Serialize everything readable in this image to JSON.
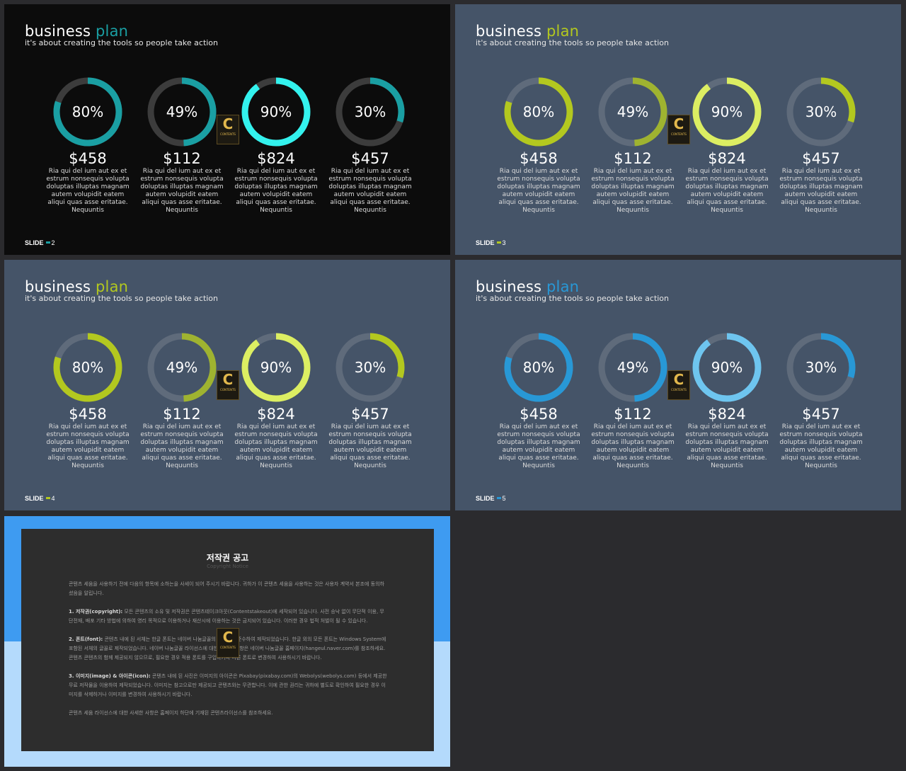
{
  "slides": [
    {
      "title_main": "business",
      "title_accent": "plan",
      "subtitle": "it's about creating the tools so people take action",
      "slide_word": "SLIDE",
      "slide_number": "2",
      "colors": {
        "background": "#0c0c0c",
        "accent": "#1a9fa3",
        "track": "#3c3c3c",
        "highlight": "#33f2ee",
        "bar": "#1a9fa3"
      },
      "items": [
        {
          "percent_label": "80%",
          "percent": 80,
          "amount": "$458",
          "text": "Ria qui del ium aut ex et estrum nonsequis volupta doluptas illuptas magnam autem volupidit eatem aliqui quas asse eritatae. Nequuntis"
        },
        {
          "percent_label": "49%",
          "percent": 49,
          "amount": "$112",
          "text": "Ria qui del ium aut ex et estrum nonsequis volupta doluptas illuptas magnam autem volupidit eatem aliqui quas asse eritatae. Nequuntis"
        },
        {
          "percent_label": "90%",
          "percent": 90,
          "amount": "$824",
          "text": "Ria qui del ium aut ex et estrum nonsequis volupta doluptas illuptas magnam autem volupidit eatem aliqui quas asse eritatae. Nequuntis"
        },
        {
          "percent_label": "30%",
          "percent": 30,
          "amount": "$457",
          "text": "Ria qui del ium aut ex et estrum nonsequis volupta doluptas illuptas magnam autem volupidit eatem aliqui quas asse eritatae. Nequuntis"
        }
      ]
    },
    {
      "title_main": "business",
      "title_accent": "plan",
      "subtitle": "it's about creating the tools so people take action",
      "slide_word": "SLIDE",
      "slide_number": "3",
      "colors": {
        "background": "#455468",
        "accent": "#b3c81f",
        "track": "#5f6b7b",
        "highlight": "#dcee62",
        "bar": "#b3c81f"
      },
      "items": [
        {
          "percent_label": "80%",
          "percent": 80,
          "amount": "$458",
          "text": "Ria qui del ium aut ex et estrum nonsequis volupta doluptas illuptas magnam autem volupidit eatem aliqui quas asse eritatae. Nequuntis"
        },
        {
          "percent_label": "49%",
          "percent": 49,
          "amount": "$112",
          "text": "Ria qui del ium aut ex et estrum nonsequis volupta doluptas illuptas magnam autem volupidit eatem aliqui quas asse eritatae. Nequuntis"
        },
        {
          "percent_label": "90%",
          "percent": 90,
          "amount": "$824",
          "text": "Ria qui del ium aut ex et estrum nonsequis volupta doluptas illuptas magnam autem volupidit eatem aliqui quas asse eritatae. Nequuntis"
        },
        {
          "percent_label": "30%",
          "percent": 30,
          "amount": "$457",
          "text": "Ria qui del ium aut ex et estrum nonsequis volupta doluptas illuptas magnam autem volupidit eatem aliqui quas asse eritatae. Nequuntis"
        }
      ]
    },
    {
      "title_main": "business",
      "title_accent": "plan",
      "subtitle": "it's about creating the tools so people take action",
      "slide_word": "SLIDE",
      "slide_number": "4",
      "colors": {
        "background": "#455468",
        "accent": "#b3c81f",
        "track": "#5f6b7b",
        "highlight": "#dcee62",
        "bar": "#b3c81f"
      },
      "items": [
        {
          "percent_label": "80%",
          "percent": 80,
          "amount": "$458",
          "text": "Ria qui del ium aut ex et estrum nonsequis volupta doluptas illuptas magnam autem volupidit eatem aliqui quas asse eritatae. Nequuntis"
        },
        {
          "percent_label": "49%",
          "percent": 49,
          "amount": "$112",
          "text": "Ria qui del ium aut ex et estrum nonsequis volupta doluptas illuptas magnam autem volupidit eatem aliqui quas asse eritatae. Nequuntis"
        },
        {
          "percent_label": "90%",
          "percent": 90,
          "amount": "$824",
          "text": "Ria qui del ium aut ex et estrum nonsequis volupta doluptas illuptas magnam autem volupidit eatem aliqui quas asse eritatae. Nequuntis"
        },
        {
          "percent_label": "30%",
          "percent": 30,
          "amount": "$457",
          "text": "Ria qui del ium aut ex et estrum nonsequis volupta doluptas illuptas magnam autem volupidit eatem aliqui quas asse eritatae. Nequuntis"
        }
      ]
    },
    {
      "title_main": "business",
      "title_accent": "plan",
      "subtitle": "it's about creating the tools so people take action",
      "slide_word": "SLIDE",
      "slide_number": "5",
      "colors": {
        "background": "#455468",
        "accent": "#2898d6",
        "track": "#5f6b7b",
        "highlight": "#6ec5ef",
        "bar": "#2898d6"
      },
      "items": [
        {
          "percent_label": "80%",
          "percent": 80,
          "amount": "$458",
          "text": "Ria qui del ium aut ex et estrum nonsequis volupta doluptas illuptas magnam autem volupidit eatem aliqui quas asse eritatae. Nequuntis"
        },
        {
          "percent_label": "49%",
          "percent": 49,
          "amount": "$112",
          "text": "Ria qui del ium aut ex et estrum nonsequis volupta doluptas illuptas magnam autem volupidit eatem aliqui quas asse eritatae. Nequuntis"
        },
        {
          "percent_label": "90%",
          "percent": 90,
          "amount": "$824",
          "text": "Ria qui del ium aut ex et estrum nonsequis volupta doluptas illuptas magnam autem volupidit eatem aliqui quas asse eritatae. Nequuntis"
        },
        {
          "percent_label": "30%",
          "percent": 30,
          "amount": "$457",
          "text": "Ria qui del ium aut ex et estrum nonsequis volupta doluptas illuptas magnam autem volupidit eatem aliqui quas asse eritatae. Nequuntis"
        }
      ]
    }
  ],
  "logo": {
    "letter": "C",
    "text": "CONTENTS"
  },
  "notice": {
    "title": "저작권 공고",
    "subtitle": "Copyright Notice",
    "para1": "콘텐츠 세움을 사용하기 전에 다음의 항목에 소하는을 사세이 되어 주시기 바랍니다. 귀하가 이 콘텐츠 세움을 사용하는 것은 사용자 계약서 본조에 동의하셨음을 알립니다.",
    "p2_head": "1. 저작권(copyright):",
    "p2_text": " 모든 콘텐츠의 소유 및 저작권은 콘텐츠테이크아웃(Contentstakeout)에 세작되어 있습니다. 사전 승낙 없이 무단적 이용, 무단전재, 배포 기타 방법에 의하여 영리 목적으로 이용하거나 재산시에 이용하는 것은 금지되어 있습니다. 이러한 경우 법적 처벌이 될 수 있습니다.",
    "p3_head": "2. 폰트(font):",
    "p3_text": " 콘텐츠 내에 된 서체는 한글 폰트는 네이버 나눔글꼴의 저작권을 준수하여 제작되었습니다. 한글 외의 모든 폰트는 Windows System에 포함된 서체의 글꼴로 제작되었습니다. 네이버 나눔글꼴 라이선스에 대한 사세한 사항은 네이버 나눔글꼴 홈페이지(hangeul.naver.com)를 참조하세요. 콘텐츠 콘텐츠의 함께 제공되지 않으므로, 필요한 경우 적용 폰트를 구입하거나 다른 폰트로 변경하여 사용하시기 바랍니다.",
    "p4_head": "3. 이미지(image) & 아이콘(icon):",
    "p4_text": " 콘텐츠 내에 된 사진은 이미지의 아이콘은 Pixabay(pixabay.com)의 Webolys(webolys.com) 등에서 제공한 무료 저작물을 이용하여 제작되었습니다. 이미지는 참고으로만 제공되고 콘텐츠와는 무관합니다. 이에 관한 권리는 귀하에 별도로 확인하여 필요한 경우 이미지를 삭제하거나 이미지를 변경하여 사용하시기 바랍니다.",
    "para5": "콘텐츠 세움 라이선스에 대한 사세한 사항은 홈페이지 하단에 기재된 콘텐츠라이선스를 참조하세요.",
    "colors": {
      "top": "#3e9bf1",
      "bottom": "#b4dafc",
      "panel": "#2d2d2d"
    }
  }
}
